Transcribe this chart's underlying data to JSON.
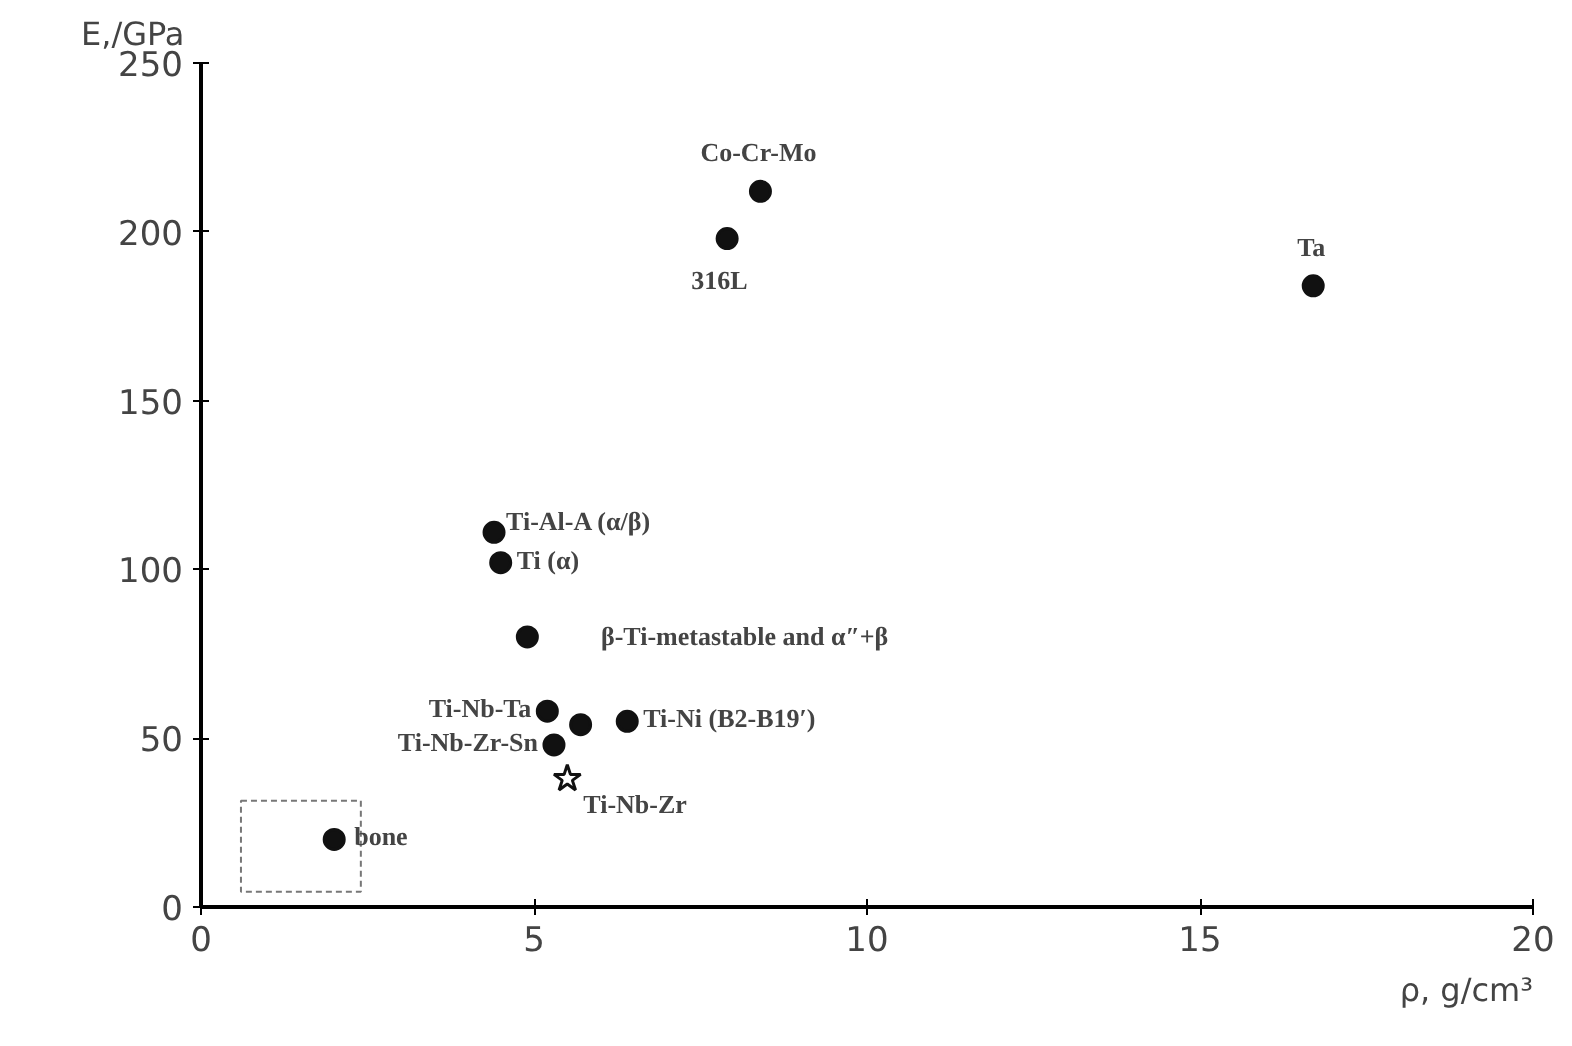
{
  "chart_data": {
    "type": "scatter",
    "xlabel": "ρ, g/cm³",
    "ylabel": "E,/GPa",
    "xlim": [
      0,
      20
    ],
    "ylim": [
      0,
      250
    ],
    "xticks": [
      0,
      5,
      10,
      15,
      20
    ],
    "yticks": [
      0,
      50,
      100,
      150,
      200,
      250
    ],
    "grid": false,
    "series": [
      {
        "color": "#111111",
        "marker": "circle",
        "x": [
          8.4,
          7.9,
          16.7,
          4.4,
          4.5,
          4.9,
          5.7,
          5.2,
          5.3,
          6.4,
          2.0
        ],
        "values": [
          212,
          198,
          184,
          111,
          102,
          80,
          54,
          58,
          48,
          55,
          20
        ]
      },
      {
        "color": "#111111",
        "marker": "star",
        "x": [
          5.5
        ],
        "values": [
          38
        ]
      }
    ],
    "annotations": [
      {
        "text": "Co-Cr-Mo",
        "x": 8.4,
        "y": 212
      },
      {
        "text": "316L",
        "x": 7.9,
        "y": 198
      },
      {
        "text": "Ta",
        "x": 16.7,
        "y": 184
      },
      {
        "text": "Ti-Al-A (α/β)",
        "x": 4.4,
        "y": 111
      },
      {
        "text": "Ti (α)",
        "x": 4.5,
        "y": 102
      },
      "β-Ti-metastable and α″+β",
      {
        "text": "Ti-Nb-Ta",
        "x": 5.2,
        "y": 58
      },
      {
        "text": "Ti-Nb-Zr-Sn",
        "x": 5.3,
        "y": 48
      },
      {
        "text": "Ti-Ni (B2-B19′)",
        "x": 6.4,
        "y": 55
      },
      {
        "text": "Ti-Nb-Zr",
        "x": 5.5,
        "y": 38
      },
      {
        "text": "bone",
        "x": 2.0,
        "y": 20
      }
    ]
  }
}
